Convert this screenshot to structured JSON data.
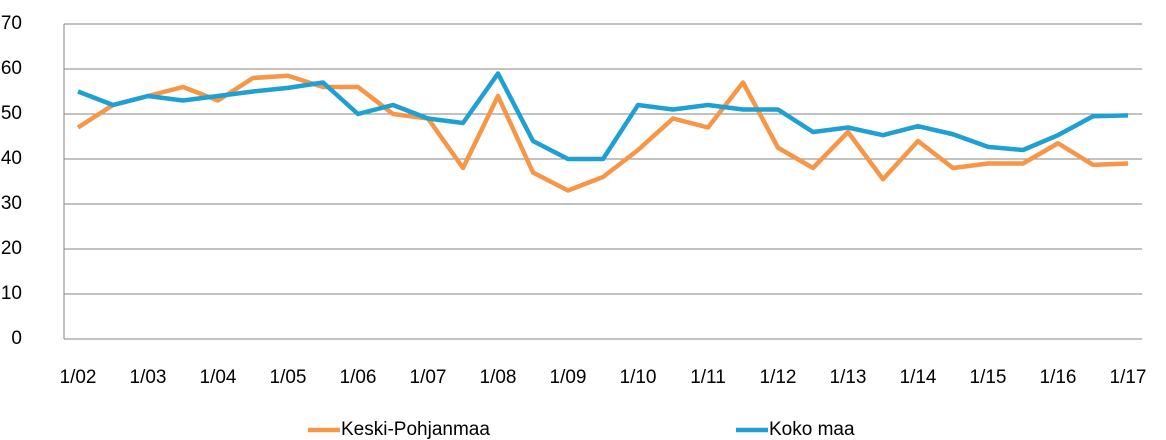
{
  "chart_data": {
    "type": "line",
    "categories": [
      "1/02",
      null,
      "1/03",
      null,
      "1/04",
      null,
      "1/05",
      null,
      "1/06",
      null,
      "1/07",
      null,
      "1/08",
      null,
      "1/09",
      null,
      "1/10",
      null,
      "1/11",
      null,
      "1/12",
      null,
      "1/13",
      null,
      "1/14",
      null,
      "1/15",
      null,
      "1/16",
      null,
      "1/17"
    ],
    "series": [
      {
        "name": "Keski-Pohjanmaa",
        "color": "#f79646",
        "values": [
          47,
          52,
          54,
          56,
          53,
          58,
          58.5,
          56,
          56,
          50,
          49,
          38,
          54,
          37,
          33,
          36,
          42,
          49,
          47,
          57,
          42.5,
          38,
          46,
          35.5,
          44,
          38,
          39,
          39,
          43.5,
          38.7,
          39
        ]
      },
      {
        "name": "Koko maa",
        "color": "#1ea0d2",
        "values": [
          55,
          52,
          54,
          53,
          54,
          55,
          55.8,
          57,
          50,
          52,
          49,
          48,
          59,
          44,
          40,
          40,
          52,
          51,
          52,
          51,
          51,
          46,
          47,
          45.3,
          47.3,
          45.5,
          42.7,
          42,
          45.3,
          49.5,
          49.7
        ]
      }
    ],
    "ylim": [
      0,
      70
    ],
    "yticks": [
      0,
      10,
      20,
      30,
      40,
      50,
      60,
      70
    ],
    "grid": true,
    "legend": "bottom"
  }
}
